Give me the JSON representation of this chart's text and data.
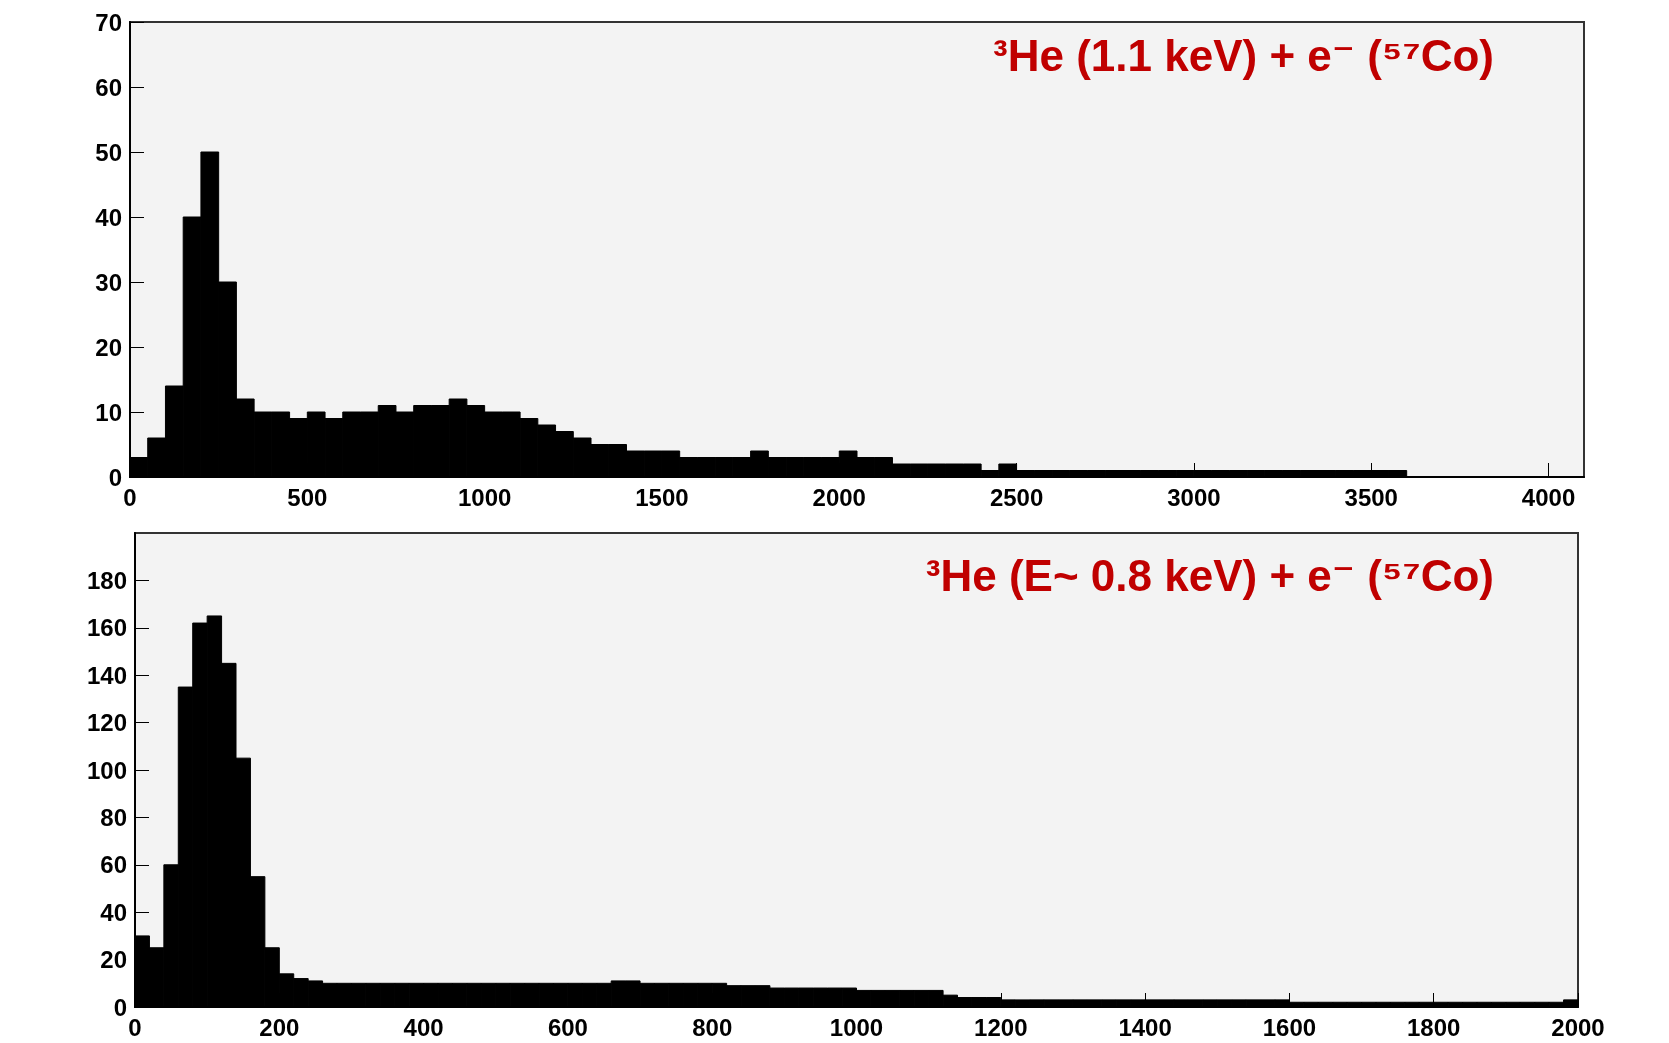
{
  "chart_data": [
    {
      "type": "histogram",
      "title": "³He (1.1 keV) + e⁻ (⁵⁷Co)",
      "color": "#000000",
      "bins": [
        0,
        50,
        100,
        150,
        200,
        250,
        300,
        350,
        400,
        450,
        500,
        550,
        600,
        650,
        700,
        750,
        800,
        850,
        900,
        950,
        1000,
        1050,
        1100,
        1150,
        1200,
        1250,
        1300,
        1350,
        1400,
        1450,
        1500,
        1550,
        1600,
        1650,
        1700,
        1750,
        1800,
        1850,
        1900,
        1950,
        2000,
        2050,
        2100,
        2150,
        2200,
        2250,
        2300,
        2350,
        2400,
        2450,
        2500,
        2550,
        2600,
        2650,
        2700,
        2750,
        2800,
        2850,
        2900,
        2950,
        3000,
        3050,
        3100,
        3150,
        3200,
        3250,
        3300,
        3350,
        3400,
        3450,
        3500,
        3550,
        3600,
        3650,
        3700,
        3750,
        3800,
        3850,
        3900,
        3950,
        4000,
        4050,
        4100
      ],
      "values": [
        3,
        6,
        14,
        40,
        50,
        30,
        12,
        10,
        10,
        9,
        10,
        9,
        10,
        10,
        11,
        10,
        11,
        11,
        12,
        11,
        10,
        10,
        9,
        8,
        7,
        6,
        5,
        5,
        4,
        4,
        4,
        3,
        3,
        3,
        3,
        4,
        3,
        3,
        3,
        3,
        4,
        3,
        3,
        2,
        2,
        2,
        2,
        2,
        1,
        2,
        1,
        1,
        1,
        1,
        1,
        1,
        1,
        1,
        1,
        1,
        1,
        1,
        1,
        1,
        1,
        1,
        1,
        1,
        1,
        1,
        1,
        1,
        0,
        0,
        0,
        0,
        0,
        0,
        0,
        0,
        0,
        0
      ],
      "xlim": [
        0,
        4100
      ],
      "xticks": [
        0,
        500,
        1000,
        1500,
        2000,
        2500,
        3000,
        3500,
        4000
      ],
      "ylim": [
        0,
        70
      ],
      "yticks": [
        0,
        10,
        20,
        30,
        40,
        50,
        60,
        70
      ]
    },
    {
      "type": "histogram",
      "title": "³He (E~ 0.8 keV) + e⁻ (⁵⁷Co)",
      "color": "#000000",
      "bins": [
        0,
        20,
        40,
        60,
        80,
        100,
        120,
        140,
        160,
        180,
        200,
        220,
        240,
        260,
        280,
        300,
        320,
        340,
        360,
        380,
        400,
        420,
        440,
        460,
        480,
        500,
        520,
        540,
        560,
        580,
        600,
        620,
        640,
        660,
        680,
        700,
        720,
        740,
        760,
        780,
        800,
        820,
        840,
        860,
        880,
        900,
        920,
        940,
        960,
        980,
        1000,
        1020,
        1040,
        1060,
        1080,
        1100,
        1120,
        1140,
        1160,
        1180,
        1200,
        1220,
        1240,
        1260,
        1280,
        1300,
        1320,
        1340,
        1360,
        1380,
        1400,
        1420,
        1440,
        1460,
        1480,
        1500,
        1520,
        1540,
        1560,
        1580,
        1600,
        1620,
        1640,
        1660,
        1680,
        1700,
        1720,
        1740,
        1760,
        1780,
        1800,
        1820,
        1840,
        1860,
        1880,
        1900,
        1920,
        1940,
        1960,
        1980,
        2000
      ],
      "values": [
        30,
        25,
        60,
        135,
        162,
        165,
        145,
        105,
        55,
        25,
        14,
        12,
        11,
        10,
        10,
        10,
        10,
        10,
        10,
        10,
        10,
        10,
        10,
        10,
        10,
        10,
        10,
        10,
        10,
        10,
        10,
        10,
        10,
        11,
        11,
        10,
        10,
        10,
        10,
        10,
        10,
        9,
        9,
        9,
        8,
        8,
        8,
        8,
        8,
        8,
        7,
        7,
        7,
        7,
        7,
        7,
        5,
        4,
        4,
        4,
        3,
        3,
        3,
        3,
        3,
        3,
        3,
        3,
        3,
        3,
        3,
        3,
        3,
        3,
        3,
        3,
        3,
        3,
        3,
        3,
        2,
        2,
        2,
        2,
        2,
        2,
        2,
        2,
        2,
        2,
        2,
        2,
        2,
        2,
        2,
        2,
        2,
        2,
        2,
        3
      ],
      "xlim": [
        0,
        2000
      ],
      "xticks": [
        0,
        200,
        400,
        600,
        800,
        1000,
        1200,
        1400,
        1600,
        1800,
        2000
      ],
      "ylim": [
        0,
        200
      ],
      "yticks": [
        0,
        20,
        40,
        60,
        80,
        100,
        120,
        140,
        160,
        180
      ]
    }
  ]
}
